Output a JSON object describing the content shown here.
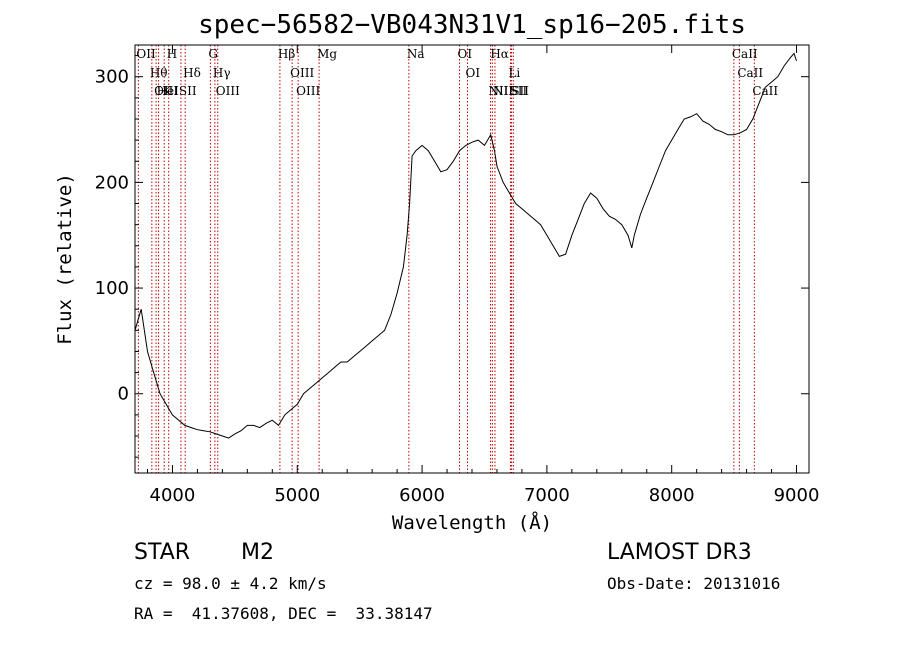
{
  "chart_data": {
    "type": "line",
    "title": "spec−56582−VB043N31V1_sp16−205.fits",
    "xlabel": "Wavelength (Å)",
    "ylabel": "Flux (relative)",
    "xlim": [
      3700,
      9100
    ],
    "ylim": [
      -75,
      330
    ],
    "x_ticks": [
      4000,
      5000,
      6000,
      7000,
      8000,
      9000
    ],
    "y_ticks": [
      0,
      100,
      200,
      300
    ],
    "x_tick_labels": [
      "4000",
      "5000",
      "6000",
      "7000",
      "8000",
      "9000"
    ],
    "y_tick_labels": [
      "0",
      "100",
      "200",
      "300"
    ],
    "series": [
      {
        "x": [
          3700,
          3750,
          3800,
          3850,
          3900,
          3950,
          4000,
          4050,
          4100,
          4150,
          4200,
          4250,
          4300,
          4350,
          4400,
          4450,
          4500,
          4550,
          4600,
          4650,
          4700,
          4750,
          4800,
          4850,
          4900,
          4950,
          5000,
          5050,
          5100,
          5150,
          5200,
          5250,
          5300,
          5350,
          5400,
          5450,
          5500,
          5550,
          5600,
          5650,
          5700,
          5750,
          5800,
          5850,
          5880,
          5900,
          5920,
          5950,
          6000,
          6050,
          6100,
          6150,
          6200,
          6250,
          6300,
          6350,
          6400,
          6450,
          6500,
          6550,
          6580,
          6600,
          6650,
          6700,
          6750,
          6800,
          6850,
          6900,
          6950,
          7000,
          7050,
          7100,
          7150,
          7200,
          7250,
          7300,
          7350,
          7400,
          7450,
          7500,
          7550,
          7600,
          7650,
          7680,
          7700,
          7750,
          7800,
          7850,
          7900,
          7950,
          8000,
          8050,
          8100,
          8150,
          8200,
          8250,
          8300,
          8350,
          8400,
          8450,
          8500,
          8550,
          8600,
          8650,
          8700,
          8750,
          8800,
          8850,
          8900,
          8950,
          8980,
          9000
        ],
        "y": [
          60,
          80,
          40,
          20,
          0,
          -10,
          -20,
          -25,
          -30,
          -32,
          -34,
          -35,
          -36,
          -38,
          -40,
          -42,
          -38,
          -35,
          -30,
          -30,
          -32,
          -28,
          -25,
          -30,
          -20,
          -15,
          -10,
          0,
          5,
          10,
          15,
          20,
          25,
          30,
          30,
          35,
          40,
          45,
          50,
          55,
          60,
          75,
          95,
          120,
          150,
          180,
          225,
          230,
          235,
          230,
          220,
          210,
          212,
          220,
          230,
          235,
          238,
          240,
          235,
          245,
          230,
          215,
          200,
          190,
          180,
          175,
          170,
          165,
          160,
          150,
          140,
          130,
          132,
          150,
          165,
          180,
          190,
          185,
          175,
          168,
          165,
          160,
          150,
          138,
          150,
          170,
          185,
          200,
          215,
          230,
          240,
          250,
          260,
          262,
          265,
          258,
          255,
          250,
          248,
          245,
          245,
          247,
          250,
          260,
          275,
          290,
          295,
          300,
          310,
          318,
          322,
          315
        ]
      }
    ],
    "spectral_lines": [
      {
        "wl": 3727,
        "label": "OII"
      },
      {
        "wl": 3835,
        "label": "Hθ"
      },
      {
        "wl": 3869,
        "label": "OIII"
      },
      {
        "wl": 3889,
        "label": "HeI"
      },
      {
        "wl": 3934,
        "label": "K"
      },
      {
        "wl": 3970,
        "label": "H"
      },
      {
        "wl": 4068,
        "label": "SII"
      },
      {
        "wl": 4102,
        "label": "Hδ"
      },
      {
        "wl": 4304,
        "label": "G"
      },
      {
        "wl": 4340,
        "label": "Hγ"
      },
      {
        "wl": 4363,
        "label": "OIII"
      },
      {
        "wl": 4861,
        "label": "Hβ"
      },
      {
        "wl": 4959,
        "label": "OIII"
      },
      {
        "wl": 5007,
        "label": "OIII"
      },
      {
        "wl": 5175,
        "label": "Mg"
      },
      {
        "wl": 5894,
        "label": "Na"
      },
      {
        "wl": 6300,
        "label": "OI"
      },
      {
        "wl": 6364,
        "label": "OI"
      },
      {
        "wl": 6548,
        "label": "NII"
      },
      {
        "wl": 6563,
        "label": "Hα"
      },
      {
        "wl": 6584,
        "label": "NII"
      },
      {
        "wl": 6708,
        "label": "Li"
      },
      {
        "wl": 6717,
        "label": "SII"
      },
      {
        "wl": 6731,
        "label": "SII"
      },
      {
        "wl": 8498,
        "label": "CaII"
      },
      {
        "wl": 8542,
        "label": "CaII"
      },
      {
        "wl": 8662,
        "label": "CaII"
      }
    ]
  },
  "info": {
    "class_label": "STAR",
    "subclass": "M2",
    "survey": "LAMOST DR3",
    "cz": "cz = 98.0 ± 4.2 km/s",
    "obs_date": "Obs-Date: 20131016",
    "radec": "RA =  41.37608, DEC =  33.38147"
  },
  "colors": {
    "spectrum": "#000000",
    "line_marker": "#c00000",
    "axes": "#000000"
  }
}
